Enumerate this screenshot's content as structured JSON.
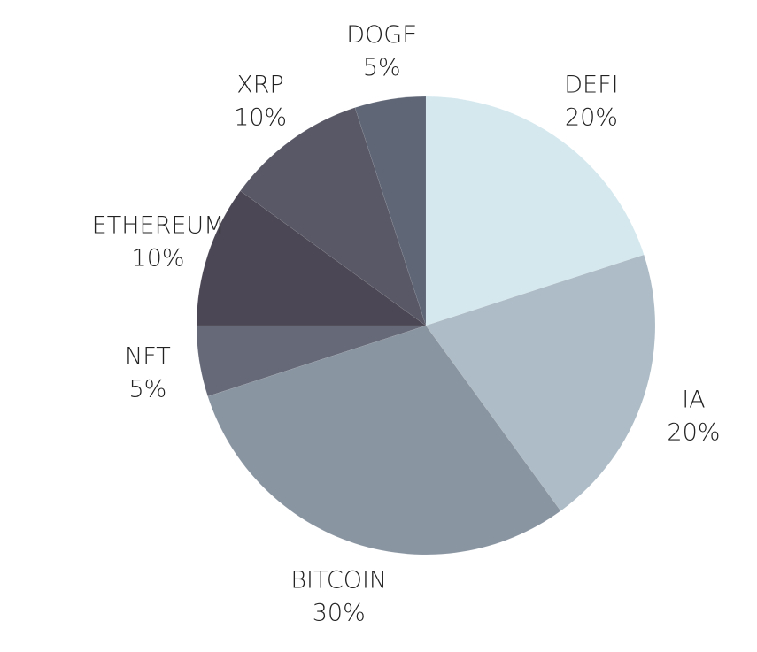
{
  "chart_data": {
    "type": "pie",
    "title": "",
    "start": "top",
    "direction": "clockwise",
    "slices": [
      {
        "label": "DEFI",
        "value": 20,
        "value_label": "20%",
        "color": "#d4e8ee"
      },
      {
        "label": "IA",
        "value": 20,
        "value_label": "20%",
        "color": "#adbcc6"
      },
      {
        "label": "BITCOIN",
        "value": 30,
        "value_label": "30%",
        "color": "#8a95a2"
      },
      {
        "label": "NFT",
        "value": 5,
        "value_label": "5%",
        "color": "#666a78"
      },
      {
        "label": "ETHEREUM",
        "value": 10,
        "value_label": "10%",
        "color": "#4c4754"
      },
      {
        "label": "XRP",
        "value": 10,
        "value_label": "10%",
        "color": "#585866"
      },
      {
        "label": "DOGE",
        "value": 5,
        "value_label": "5%",
        "color": "#5f6676"
      }
    ]
  }
}
